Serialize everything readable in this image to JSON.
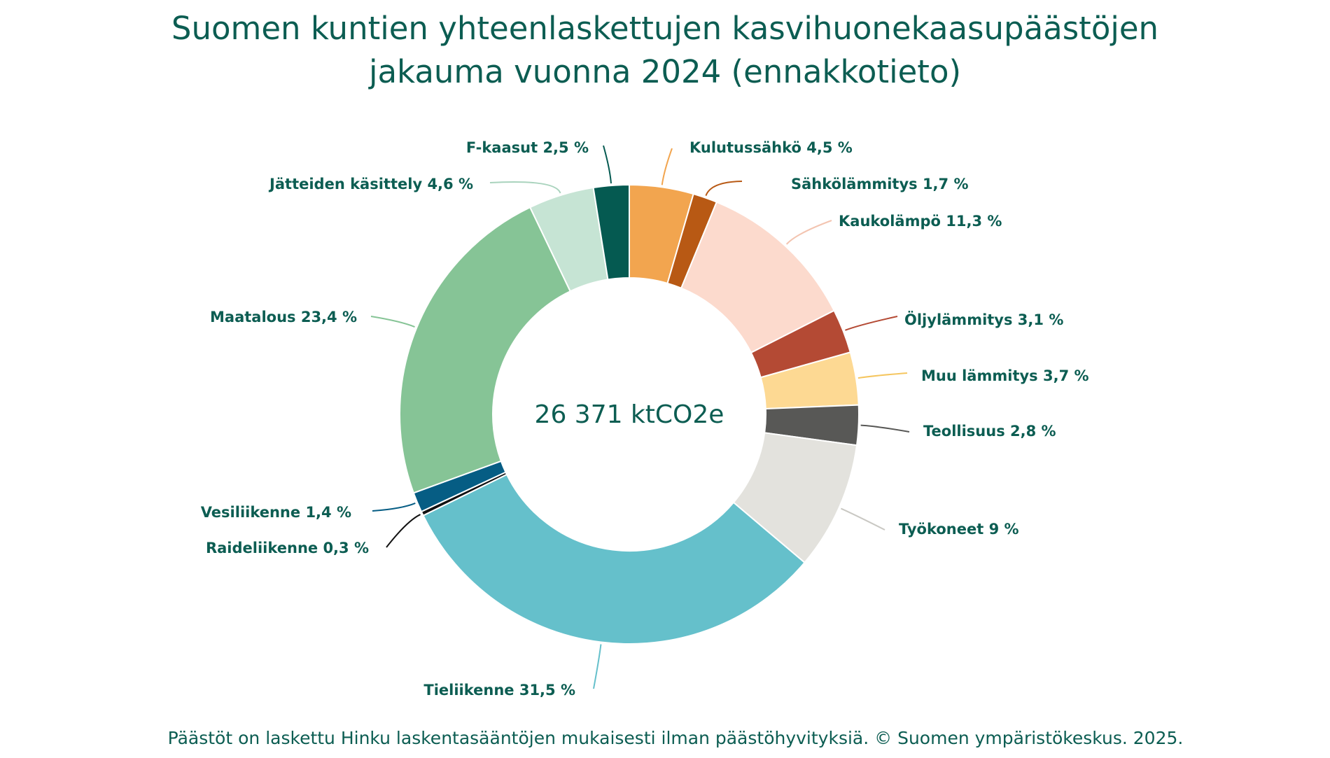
{
  "title": {
    "line1": "Suomen kuntien yhteenlaskettujen kasvihuonekaasupäästöjen",
    "line2": "jakauma vuonna 2024 (ennakkotieto)"
  },
  "footnote": "Päästöt on laskettu Hinku laskentasääntöjen mukaisesti ilman päästöhyvityksiä. © Suomen ympäristökeskus. 2025.",
  "chart_data": {
    "type": "pie",
    "variant": "donut",
    "title": "Suomen kuntien yhteenlaskettujen kasvihuonekaasupäästöjen jakauma vuonna 2024 (ennakkotieto)",
    "center_label": "26 371 ktCO2e",
    "unit": "%",
    "slices": [
      {
        "name": "Kulutussähkö",
        "value": 4.5,
        "label": "Kulutussähkö 4,5 %",
        "color": "#f2a54f"
      },
      {
        "name": "Sähkölämmitys",
        "value": 1.7,
        "label": "Sähkölämmitys 1,7 %",
        "color": "#b85914"
      },
      {
        "name": "Kaukolämpö",
        "value": 11.3,
        "label": "Kaukolämpö 11,3 %",
        "color": "#fcdacd"
      },
      {
        "name": "Öljylämmitys",
        "value": 3.1,
        "label": "Öljylämmitys 3,1 %",
        "color": "#b44a34"
      },
      {
        "name": "Muu lämmitys",
        "value": 3.7,
        "label": "Muu lämmitys 3,7 %",
        "color": "#fdd993"
      },
      {
        "name": "Teollisuus",
        "value": 2.8,
        "label": "Teollisuus 2,8 %",
        "color": "#585856"
      },
      {
        "name": "Työkoneet",
        "value": 9,
        "label": "Työkoneet 9 %",
        "color": "#e3e2dd"
      },
      {
        "name": "Tieliikenne",
        "value": 31.5,
        "label": "Tieliikenne 31,5 %",
        "color": "#65c0cb"
      },
      {
        "name": "Raideliikenne",
        "value": 0.3,
        "label": "Raideliikenne 0,3 %",
        "color": "#111111"
      },
      {
        "name": "Vesiliikenne",
        "value": 1.4,
        "label": "Vesiliikenne 1,4 %",
        "color": "#065d84"
      },
      {
        "name": "Maatalous",
        "value": 23.4,
        "label": "Maatalous 23,4 %",
        "color": "#86c496"
      },
      {
        "name": "Jätteiden käsittely",
        "value": 4.6,
        "label": "Jätteiden käsittely 4,6 %",
        "color": "#c6e4d4"
      },
      {
        "name": "F-kaasut",
        "value": 2.5,
        "label": "F-kaasut 2,5 %",
        "color": "#055a51"
      }
    ]
  }
}
